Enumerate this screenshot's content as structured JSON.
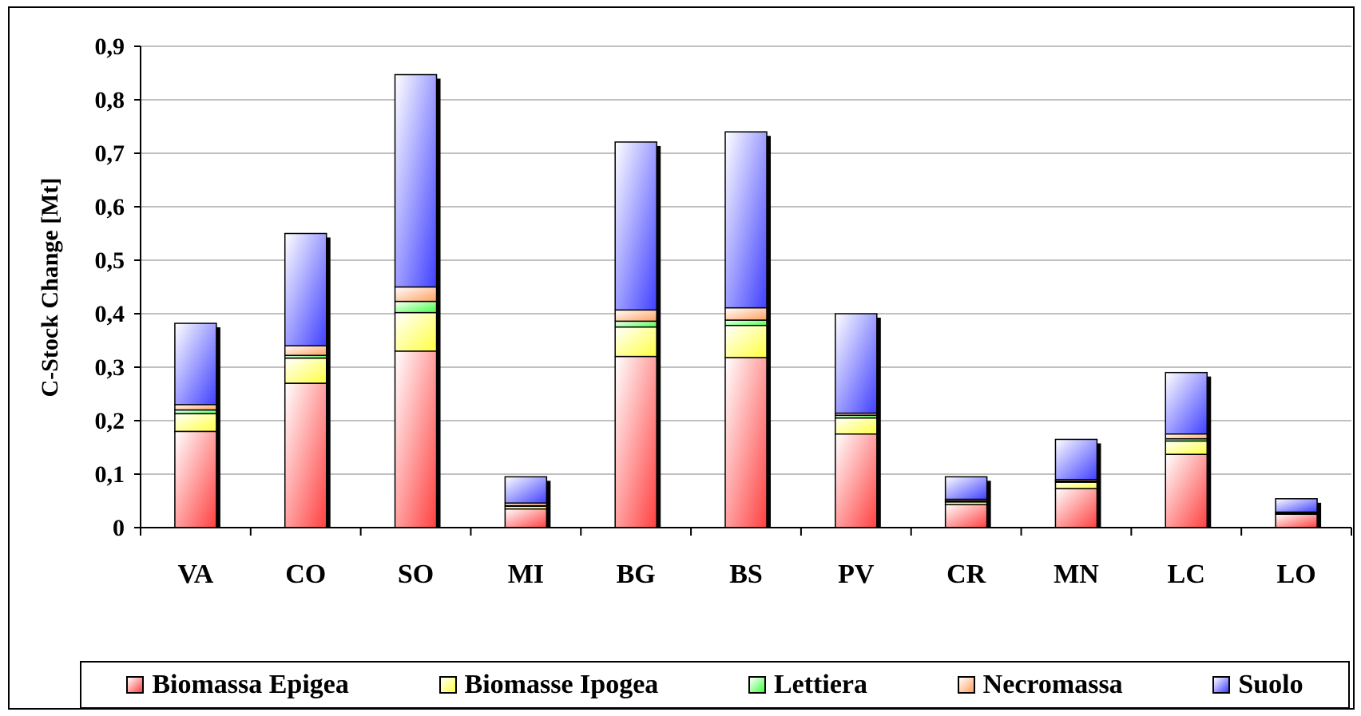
{
  "chart_data": {
    "type": "bar",
    "stacked": true,
    "title": "",
    "xlabel": "",
    "ylabel": "C-Stock Change [Mt]",
    "ylim": [
      0,
      0.9
    ],
    "yticks": [
      "0",
      "0,1",
      "0,2",
      "0,3",
      "0,4",
      "0,5",
      "0,6",
      "0,7",
      "0,8",
      "0,9"
    ],
    "grid": true,
    "legend_position": "bottom",
    "categories": [
      "VA",
      "CO",
      "SO",
      "MI",
      "BG",
      "BS",
      "PV",
      "CR",
      "MN",
      "LC",
      "LO"
    ],
    "series": [
      {
        "name": "Biomassa Epigea",
        "color": "#ff4040",
        "values": [
          0.18,
          0.27,
          0.33,
          0.035,
          0.32,
          0.318,
          0.175,
          0.043,
          0.073,
          0.137,
          0.025
        ]
      },
      {
        "name": "Biomasse Ipogea",
        "color": "#ffff40",
        "values": [
          0.033,
          0.047,
          0.072,
          0.005,
          0.055,
          0.06,
          0.03,
          0.005,
          0.012,
          0.025,
          0.002
        ]
      },
      {
        "name": "Lettiera",
        "color": "#40ff40",
        "values": [
          0.007,
          0.005,
          0.021,
          0.001,
          0.011,
          0.01,
          0.005,
          0.002,
          0.002,
          0.004,
          0.0005
        ]
      },
      {
        "name": "Necromassa",
        "color": "#ffa060",
        "values": [
          0.01,
          0.018,
          0.027,
          0.005,
          0.021,
          0.023,
          0.004,
          0.003,
          0.003,
          0.009,
          0.0015
        ]
      },
      {
        "name": "Suolo",
        "color": "#4040ff",
        "values": [
          0.152,
          0.21,
          0.397,
          0.049,
          0.314,
          0.329,
          0.186,
          0.042,
          0.075,
          0.115,
          0.025
        ]
      }
    ]
  }
}
